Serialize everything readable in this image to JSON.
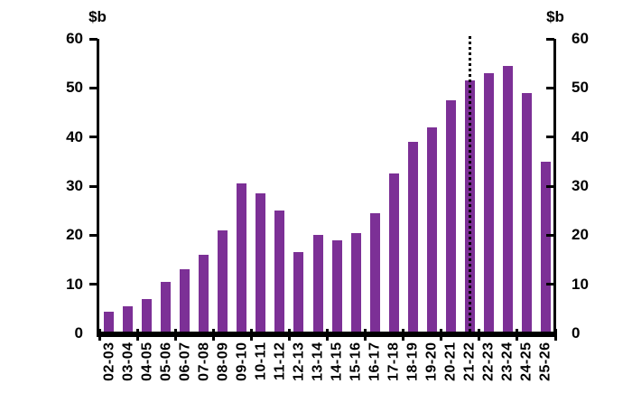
{
  "chart_data": {
    "type": "bar",
    "title": "",
    "xlabel": "",
    "ylabel_left": "$b",
    "ylabel_right": "$b",
    "categories": [
      "02-03",
      "03-04",
      "04-05",
      "05-06",
      "06-07",
      "07-08",
      "08-09",
      "09-10",
      "10-11",
      "11-12",
      "12-13",
      "13-14",
      "14-15",
      "15-16",
      "16-17",
      "17-18",
      "18-19",
      "19-20",
      "20-21",
      "21-22",
      "22-23",
      "23-24",
      "24-25",
      "25-26"
    ],
    "values": [
      4.5,
      5.5,
      7,
      10.5,
      13,
      16,
      21,
      30.5,
      28.5,
      25,
      16.5,
      20,
      19,
      20.5,
      24.5,
      32.5,
      39,
      42,
      47.5,
      51.5,
      53,
      54.5,
      49,
      35
    ],
    "ylim": [
      0,
      60
    ],
    "yticks": [
      0,
      10,
      20,
      30,
      40,
      50,
      60
    ],
    "grid": false,
    "legend": null,
    "bar_color": "#7C3096",
    "axis_color": "#000000",
    "annotation": {
      "type": "dotted-vertical-line",
      "at_category": "21-22",
      "color": "#000000"
    }
  }
}
